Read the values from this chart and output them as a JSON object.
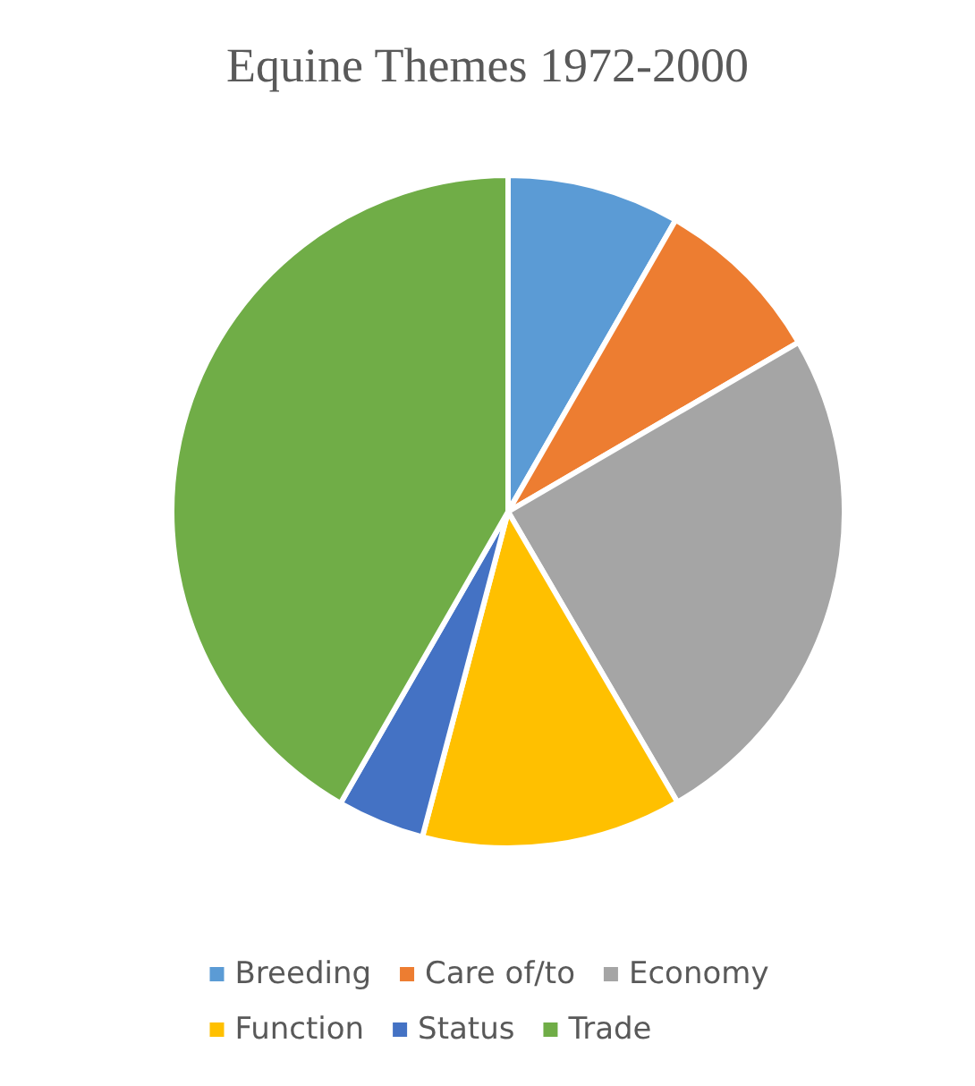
{
  "chart_data": {
    "type": "pie",
    "title": "Equine Themes 1972-2000",
    "categories": [
      "Breeding",
      "Care of/to",
      "Economy",
      "Function",
      "Status",
      "Trade"
    ],
    "values": [
      8.3,
      8.3,
      25,
      12.5,
      4.2,
      41.7
    ],
    "colors": [
      "#5b9bd5",
      "#ed7d31",
      "#a5a5a5",
      "#ffc000",
      "#4472c4",
      "#70ad47"
    ],
    "legend": "bottom"
  }
}
